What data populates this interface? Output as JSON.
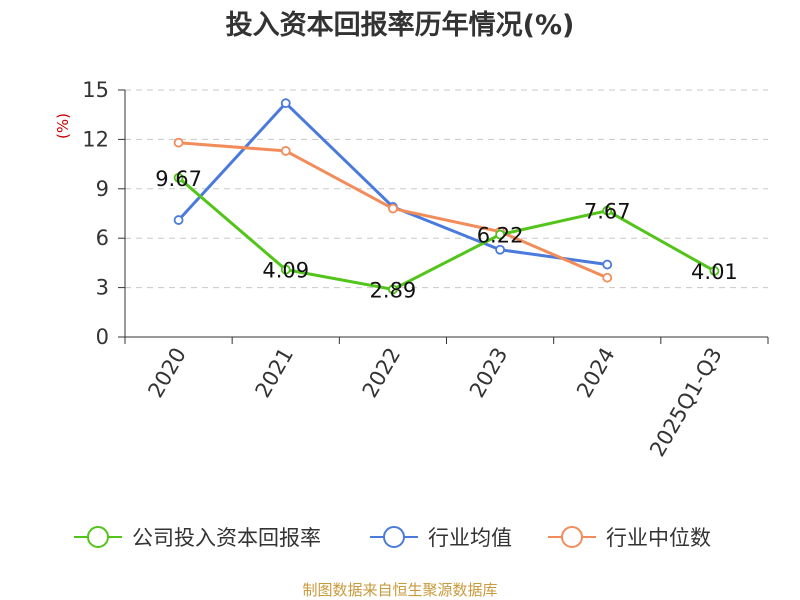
{
  "chart_data": {
    "type": "line",
    "title": "投入资本回报率历年情况(%)",
    "ylabel": "(%)",
    "categories": [
      "2020",
      "2021",
      "2022",
      "2023",
      "2024",
      "2025Q1-Q3"
    ],
    "yticks": [
      0,
      3,
      6,
      9,
      12,
      15
    ],
    "ylim": [
      0,
      15
    ],
    "grid": "horizontal dashed",
    "legend_position": "bottom",
    "series": [
      {
        "name": "公司投入资本回报率",
        "color": "#52c41a",
        "values": [
          9.67,
          4.09,
          2.89,
          6.22,
          7.67,
          4.01
        ],
        "labels": [
          "9.67",
          "4.09",
          "2.89",
          "6.22",
          "7.67",
          "4.01"
        ]
      },
      {
        "name": "行业均值",
        "color": "#4a7bdc",
        "values": [
          7.1,
          14.2,
          7.9,
          5.3,
          4.4,
          null
        ]
      },
      {
        "name": "行业中位数",
        "color": "#f28c5a",
        "values": [
          11.8,
          11.3,
          7.8,
          6.4,
          3.6,
          null
        ]
      }
    ]
  },
  "source": "制图数据来自恒生聚源数据库"
}
